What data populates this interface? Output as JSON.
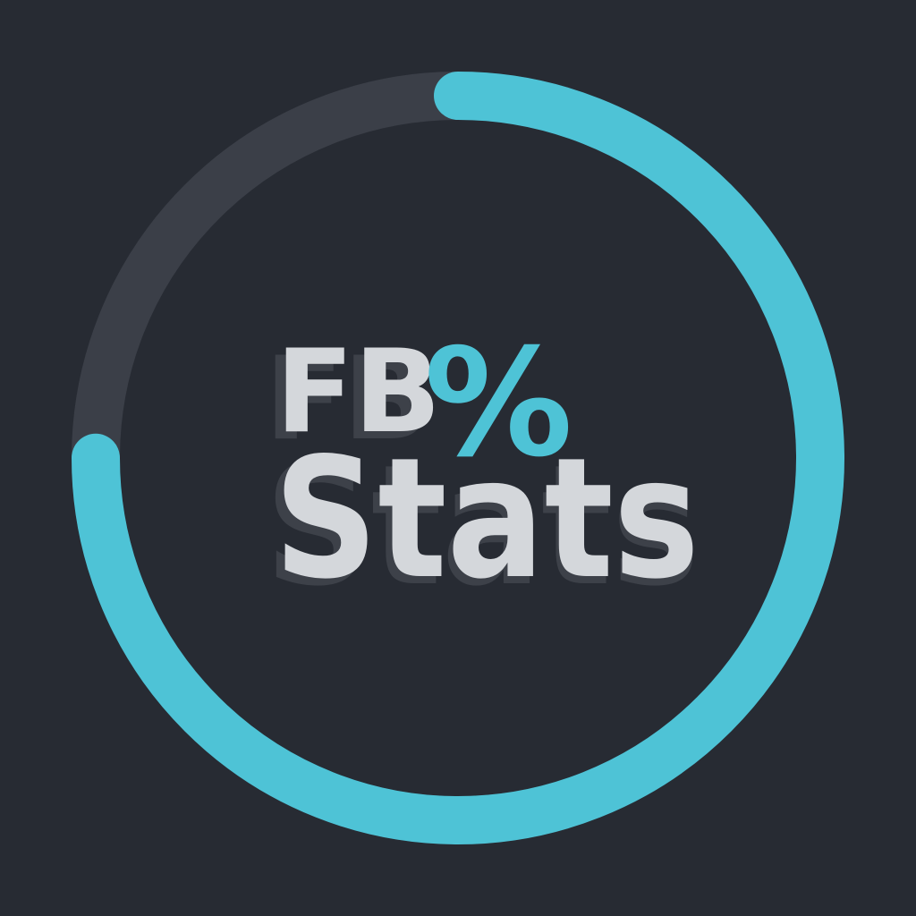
{
  "app_icon": {
    "wordmark": {
      "line1": "FB",
      "line1_symbol": "%",
      "line2": "Stats"
    },
    "progress_ring": {
      "fraction": 0.75
    },
    "colors": {
      "background": "#272b33",
      "ring_track": "#3b3f48",
      "ring_progress": "#4ec3d6",
      "text": "#d4d7db",
      "text_shadow": "#3d4149",
      "accent": "#4ec3d6"
    }
  }
}
